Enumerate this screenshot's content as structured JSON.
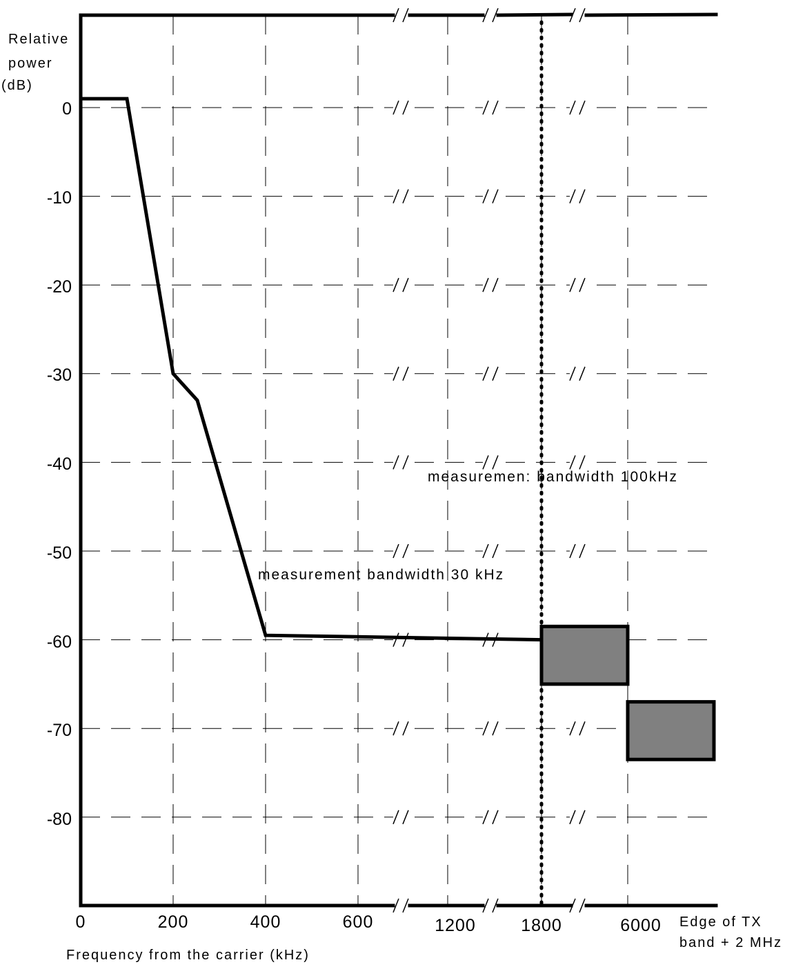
{
  "chart_data": {
    "type": "line",
    "title": "",
    "ylabel": [
      "Relative",
      "power",
      "(dB)"
    ],
    "xlabel": "Frequency from the carrier (kHz)",
    "x_edge_label": [
      "Edge of TX",
      "band + 2 MHz"
    ],
    "x_ticks": [
      "0",
      "200",
      "400",
      "600",
      "1200",
      "1800",
      "6000"
    ],
    "y_ticks": [
      "0",
      "-10",
      "-20",
      "-30",
      "-40",
      "-50",
      "-60",
      "-70",
      "-80"
    ],
    "ylim": [
      -90,
      10
    ],
    "grid": true,
    "axis_breaks": [
      "between 600 and 1200",
      "between 1200 and 1800",
      "between 1800 and 6000"
    ],
    "spectrum_mask": {
      "x": [
        "0",
        "100",
        "200",
        "250",
        "400",
        "1800"
      ],
      "y": [
        1,
        1,
        -30,
        -33,
        -59.5,
        -60
      ]
    },
    "boxes": [
      {
        "x_from": "1800",
        "x_to": "6000",
        "y_top": -58.5,
        "y_bottom": -65,
        "fill": "#808080"
      },
      {
        "x_from": "6000",
        "x_to": "Edge of TX band + 2 MHz",
        "y_top": -67,
        "y_bottom": -73.5,
        "fill": "#808080"
      }
    ],
    "vertical_marker": {
      "x": "1800",
      "style": "dotted"
    },
    "annotations": [
      "measurement bandwidth 30 kHz",
      "measuremen: bandwidth 100kHz"
    ]
  }
}
